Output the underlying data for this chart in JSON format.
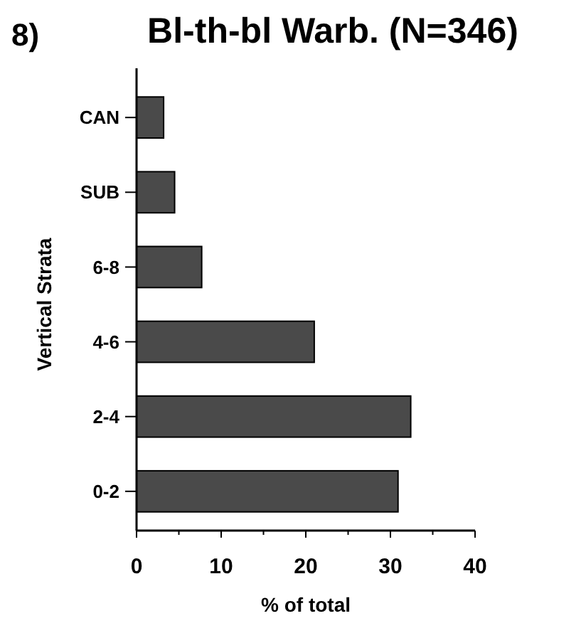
{
  "chart_data": {
    "type": "bar",
    "orientation": "horizontal",
    "title": "Bl-th-bl Warb. (N=346)",
    "annotations": [
      "8)"
    ],
    "xlabel": "% of total",
    "ylabel": "Vertical Strata",
    "categories": [
      "CAN",
      "SUB",
      "6-8",
      "4-6",
      "2-4",
      "0-2"
    ],
    "values": [
      3.2,
      4.5,
      7.7,
      21,
      32.4,
      30.9
    ],
    "color": "#4a4a4a",
    "xlim": [
      0,
      40
    ],
    "xticks": [
      0,
      {
        "value": 5,
        "label": null
      },
      10,
      {
        "value": 15,
        "label": null
      },
      20,
      {
        "value": 25,
        "label": null
      },
      30,
      {
        "value": 35,
        "label": null
      },
      40
    ],
    "grid": false
  }
}
